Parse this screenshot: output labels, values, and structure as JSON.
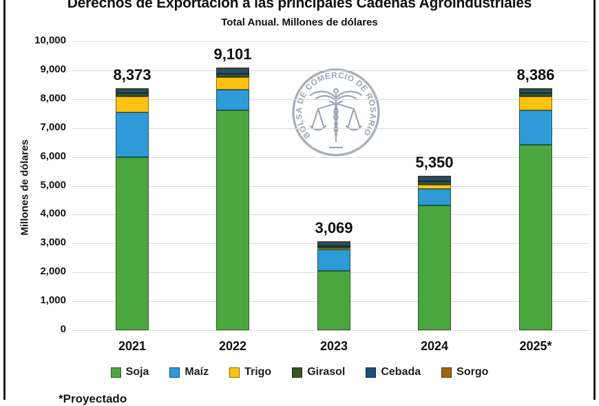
{
  "header": {
    "title": "Derechos de Exportación a las principales Cadenas Agroindustriales",
    "subtitle": "Total Anual. Millones de dólares"
  },
  "watermark": {
    "text": "BOLSA DE COMERCIO DE ROSARIO"
  },
  "footnote": "*Proyectado",
  "colors": {
    "gridline": "#d9d9d9",
    "frame": "#161616"
  },
  "chart_data": {
    "type": "bar",
    "stacked": true,
    "title": "Derechos de Exportación a las principales Cadenas Agroindustriales",
    "subtitle": "Total Anual. Millones de dólares",
    "xlabel": "",
    "ylabel": "Millones de dólares",
    "ylim": [
      0,
      10000
    ],
    "ytick_step": 1000,
    "ytick_labels": [
      "0",
      "1,000",
      "2,000",
      "3,000",
      "4,000",
      "5,000",
      "6,000",
      "7,000",
      "8,000",
      "9,000",
      "10,000"
    ],
    "grid": "horizontal",
    "legend_position": "bottom",
    "categories": [
      "2021",
      "2022",
      "2023",
      "2024",
      "2025*"
    ],
    "totals": [
      8373,
      9101,
      3069,
      5350,
      8386
    ],
    "total_labels": [
      "8,373",
      "9,101",
      "3,069",
      "5,350",
      "8,386"
    ],
    "series": [
      {
        "name": "Soja",
        "color": "#4ca63f",
        "border": "#2a5d22",
        "values": [
          6000,
          7610,
          2050,
          4310,
          6420
        ]
      },
      {
        "name": "Maíz",
        "color": "#2e9bd6",
        "border": "#17516f",
        "values": [
          1530,
          720,
          750,
          580,
          1190
        ]
      },
      {
        "name": "Trigo",
        "color": "#ffc212",
        "border": "#8a6a00",
        "values": [
          560,
          440,
          30,
          150,
          480
        ]
      },
      {
        "name": "Girasol",
        "color": "#375623",
        "border": "#1c2d11",
        "values": [
          130,
          120,
          80,
          120,
          120
        ]
      },
      {
        "name": "Cebada",
        "color": "#1f4e79",
        "border": "#102a42",
        "values": [
          130,
          190,
          150,
          180,
          160
        ]
      },
      {
        "name": "Sorgo",
        "color": "#9c6913",
        "border": "#53370a",
        "values": [
          23,
          21,
          9,
          10,
          16
        ]
      }
    ]
  }
}
